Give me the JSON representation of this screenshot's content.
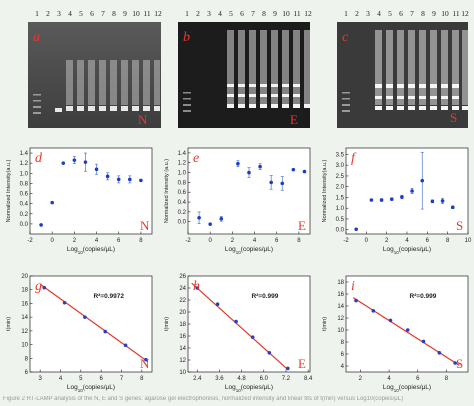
{
  "gels": [
    {
      "letter": "a",
      "tag": "N",
      "lanes": [
        "1",
        "2",
        "3",
        "4",
        "5",
        "6",
        "7",
        "8",
        "9",
        "10",
        "11",
        "12"
      ]
    },
    {
      "letter": "b",
      "tag": "E",
      "lanes": [
        "1",
        "2",
        "3",
        "4",
        "5",
        "6",
        "7",
        "8",
        "9",
        "10",
        "11",
        "12"
      ]
    },
    {
      "letter": "c",
      "tag": "S",
      "lanes": [
        "1",
        "2",
        "3",
        "4",
        "5",
        "6",
        "7",
        "8",
        "9",
        "10",
        "11",
        "12"
      ]
    }
  ],
  "caption": "Figure 2 RT-LAMP analysis of the N, E and S genes: agarose gel electrophoresis, normalized intensity and linear fits of t(min) versus Log10(copies/μL)",
  "chart_data": [
    {
      "id": "d",
      "type": "scatter",
      "letter": "d",
      "tag": "N",
      "ylabel": "Normalized Intensity(a.u.)",
      "xlabel": "Log10(copies/μL)",
      "xlim": [
        -2,
        9
      ],
      "ylim": [
        -0.2,
        1.5
      ],
      "xticks": [
        -2,
        0,
        2,
        4,
        6,
        8
      ],
      "yticks": [
        0.0,
        0.2,
        0.4,
        0.6,
        0.8,
        1.0,
        1.2,
        1.4
      ],
      "x": [
        -1,
        0,
        1,
        2,
        3,
        4,
        5,
        6,
        7,
        8
      ],
      "y": [
        -0.02,
        0.42,
        1.2,
        1.26,
        1.22,
        1.08,
        0.94,
        0.88,
        0.88,
        0.86
      ],
      "err": [
        0.0,
        0.0,
        0.0,
        0.07,
        0.18,
        0.1,
        0.07,
        0.07,
        0.07,
        0.0
      ]
    },
    {
      "id": "e",
      "type": "scatter",
      "letter": "e",
      "tag": "E",
      "ylabel": "Normalized Intensity (a.u.)",
      "xlabel": "Log10(copies/μL)",
      "xlim": [
        -2,
        9
      ],
      "ylim": [
        -0.25,
        1.5
      ],
      "xticks": [
        -2,
        0,
        2,
        4,
        6,
        8
      ],
      "yticks": [
        0.0,
        0.2,
        0.4,
        0.6,
        0.8,
        1.0,
        1.2,
        1.4
      ],
      "x": [
        -1,
        0,
        1,
        2.5,
        3.5,
        4.5,
        5.5,
        6.5,
        7.5,
        8.5
      ],
      "y": [
        0.08,
        -0.05,
        0.06,
        1.18,
        1.0,
        1.12,
        0.8,
        0.78,
        1.06,
        1.02
      ],
      "err": [
        0.12,
        0.0,
        0.05,
        0.06,
        0.1,
        0.06,
        0.14,
        0.14,
        0.0,
        0.0
      ]
    },
    {
      "id": "f",
      "type": "scatter",
      "letter": "f",
      "tag": "S",
      "ylabel": "Normalized Intensity(a.u.)",
      "xlabel": "Log10(copies/μL)",
      "xlim": [
        -2,
        10
      ],
      "ylim": [
        -0.2,
        3.8
      ],
      "xticks": [
        -2,
        0,
        2,
        4,
        6,
        8,
        10
      ],
      "yticks": [
        0.0,
        0.5,
        1.0,
        1.5,
        2.0,
        2.5,
        3.0,
        3.5
      ],
      "x": [
        -1,
        0.5,
        1.5,
        2.5,
        3.5,
        4.5,
        5.5,
        6.5,
        7.5,
        8.5
      ],
      "y": [
        0.02,
        1.38,
        1.38,
        1.42,
        1.52,
        1.8,
        2.28,
        1.32,
        1.34,
        1.04
      ],
      "err": [
        0.0,
        0.0,
        0.06,
        0.06,
        0.08,
        0.12,
        1.32,
        0.06,
        0.12,
        0.06
      ]
    },
    {
      "id": "g",
      "type": "scatter",
      "letter": "g",
      "tag": "N",
      "ylabel": "t(min)",
      "xlabel": "Log10(copies/μL)",
      "r2": "R²=0.9972",
      "xlim": [
        2.5,
        8.5
      ],
      "ylim": [
        6,
        20
      ],
      "xticks": [
        3,
        4,
        5,
        6,
        7,
        8
      ],
      "yticks": [
        6,
        8,
        10,
        12,
        14,
        16,
        18,
        20
      ],
      "x": [
        3.2,
        4.2,
        5.2,
        6.2,
        7.2,
        8.2
      ],
      "y": [
        18.3,
        16.1,
        14.0,
        11.9,
        9.9,
        7.8
      ],
      "fit": [
        [
          3.0,
          18.8
        ],
        [
          8.3,
          7.5
        ]
      ]
    },
    {
      "id": "h",
      "type": "scatter",
      "letter": "h",
      "tag": "E",
      "ylabel": "t(min)",
      "xlabel": "Log10(copies/μL)",
      "r2": "R²=0.999",
      "xlim": [
        1.9,
        8.5
      ],
      "ylim": [
        10,
        26
      ],
      "xticks": [
        2.4,
        3.6,
        4.8,
        6.0,
        7.2,
        8.4
      ],
      "yticks": [
        10,
        12,
        14,
        16,
        18,
        20,
        22,
        24,
        26
      ],
      "x": [
        2.4,
        3.5,
        4.5,
        5.4,
        6.3,
        7.3
      ],
      "y": [
        24.0,
        21.3,
        18.4,
        15.8,
        13.2,
        10.6
      ],
      "fit": [
        [
          2.1,
          24.8
        ],
        [
          7.3,
          10.4
        ]
      ]
    },
    {
      "id": "i",
      "type": "scatter",
      "letter": "i",
      "tag": "S",
      "ylabel": "t(min)",
      "xlabel": "Log10(copies/μL)",
      "r2": "R²=0.999",
      "xlim": [
        1,
        9.5
      ],
      "ylim": [
        3,
        19
      ],
      "xticks": [
        2,
        4,
        6,
        8
      ],
      "yticks": [
        4,
        6,
        8,
        10,
        12,
        14,
        16,
        18
      ],
      "x": [
        1.7,
        2.9,
        4.1,
        5.3,
        6.4,
        7.5,
        8.6
      ],
      "y": [
        14.9,
        13.2,
        11.6,
        10.0,
        8.1,
        6.2,
        4.5
      ],
      "fit": [
        [
          1.5,
          15.4
        ],
        [
          8.9,
          4.1
        ]
      ]
    }
  ]
}
